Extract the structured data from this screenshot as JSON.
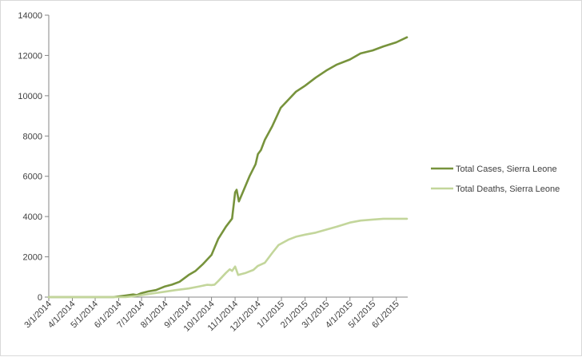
{
  "chart_data": {
    "type": "line",
    "title": "",
    "xlabel": "",
    "ylabel": "",
    "ylim": [
      0,
      14000
    ],
    "y_ticks": [
      0,
      2000,
      4000,
      6000,
      8000,
      10000,
      12000,
      14000
    ],
    "x_ticks": [
      "3/1/2014",
      "4/1/2014",
      "5/1/2014",
      "6/1/2014",
      "7/1/2014",
      "8/1/2014",
      "9/1/2014",
      "10/1/2014",
      "11/1/2014",
      "12/1/2014",
      "1/1/2015",
      "2/1/2015",
      "3/1/2015",
      "4/1/2015",
      "5/1/2015",
      "6/1/2015"
    ],
    "x_range": [
      "2014-03-01",
      "2015-06-16"
    ],
    "grid": false,
    "legend_position": "right",
    "series": [
      {
        "name": "Total Cases, Sierra Leone",
        "color": "#77933c",
        "points": [
          [
            "2014-03-01",
            0
          ],
          [
            "2014-05-25",
            0
          ],
          [
            "2014-06-01",
            30
          ],
          [
            "2014-06-10",
            80
          ],
          [
            "2014-06-20",
            130
          ],
          [
            "2014-06-25",
            100
          ],
          [
            "2014-07-01",
            200
          ],
          [
            "2014-07-10",
            280
          ],
          [
            "2014-07-20",
            350
          ],
          [
            "2014-08-01",
            530
          ],
          [
            "2014-08-10",
            620
          ],
          [
            "2014-08-20",
            760
          ],
          [
            "2014-09-01",
            1100
          ],
          [
            "2014-09-10",
            1300
          ],
          [
            "2014-09-20",
            1650
          ],
          [
            "2014-10-01",
            2100
          ],
          [
            "2014-10-10",
            2900
          ],
          [
            "2014-10-20",
            3500
          ],
          [
            "2014-10-28",
            3900
          ],
          [
            "2014-11-01",
            5200
          ],
          [
            "2014-11-03",
            5330
          ],
          [
            "2014-11-06",
            4750
          ],
          [
            "2014-11-10",
            5100
          ],
          [
            "2014-11-20",
            6000
          ],
          [
            "2014-11-28",
            6600
          ],
          [
            "2014-12-01",
            7100
          ],
          [
            "2014-12-05",
            7300
          ],
          [
            "2014-12-10",
            7800
          ],
          [
            "2014-12-20",
            8500
          ],
          [
            "2014-12-31",
            9400
          ],
          [
            "2015-01-10",
            9800
          ],
          [
            "2015-01-20",
            10200
          ],
          [
            "2015-02-01",
            10500
          ],
          [
            "2015-02-15",
            10900
          ],
          [
            "2015-03-01",
            11250
          ],
          [
            "2015-03-15",
            11550
          ],
          [
            "2015-04-01",
            11800
          ],
          [
            "2015-04-15",
            12100
          ],
          [
            "2015-05-01",
            12250
          ],
          [
            "2015-05-15",
            12450
          ],
          [
            "2015-06-01",
            12650
          ],
          [
            "2015-06-15",
            12900
          ]
        ]
      },
      {
        "name": "Total Deaths, Sierra Leone",
        "color": "#c3d69b",
        "points": [
          [
            "2014-03-01",
            0
          ],
          [
            "2014-06-10",
            0
          ],
          [
            "2014-06-20",
            40
          ],
          [
            "2014-07-01",
            100
          ],
          [
            "2014-07-15",
            180
          ],
          [
            "2014-08-01",
            270
          ],
          [
            "2014-08-15",
            350
          ],
          [
            "2014-09-01",
            430
          ],
          [
            "2014-09-15",
            530
          ],
          [
            "2014-09-25",
            610
          ],
          [
            "2014-10-01",
            600
          ],
          [
            "2014-10-05",
            620
          ],
          [
            "2014-10-10",
            800
          ],
          [
            "2014-10-20",
            1200
          ],
          [
            "2014-10-25",
            1380
          ],
          [
            "2014-10-28",
            1300
          ],
          [
            "2014-11-01",
            1520
          ],
          [
            "2014-11-05",
            1100
          ],
          [
            "2014-11-15",
            1200
          ],
          [
            "2014-11-25",
            1350
          ],
          [
            "2014-12-01",
            1550
          ],
          [
            "2014-12-10",
            1700
          ],
          [
            "2014-12-20",
            2200
          ],
          [
            "2014-12-28",
            2580
          ],
          [
            "2015-01-10",
            2850
          ],
          [
            "2015-01-20",
            3000
          ],
          [
            "2015-02-01",
            3100
          ],
          [
            "2015-02-15",
            3200
          ],
          [
            "2015-03-01",
            3350
          ],
          [
            "2015-03-15",
            3500
          ],
          [
            "2015-04-01",
            3700
          ],
          [
            "2015-04-15",
            3800
          ],
          [
            "2015-05-01",
            3850
          ],
          [
            "2015-05-15",
            3890
          ],
          [
            "2015-06-01",
            3890
          ],
          [
            "2015-06-15",
            3890
          ]
        ]
      }
    ]
  }
}
